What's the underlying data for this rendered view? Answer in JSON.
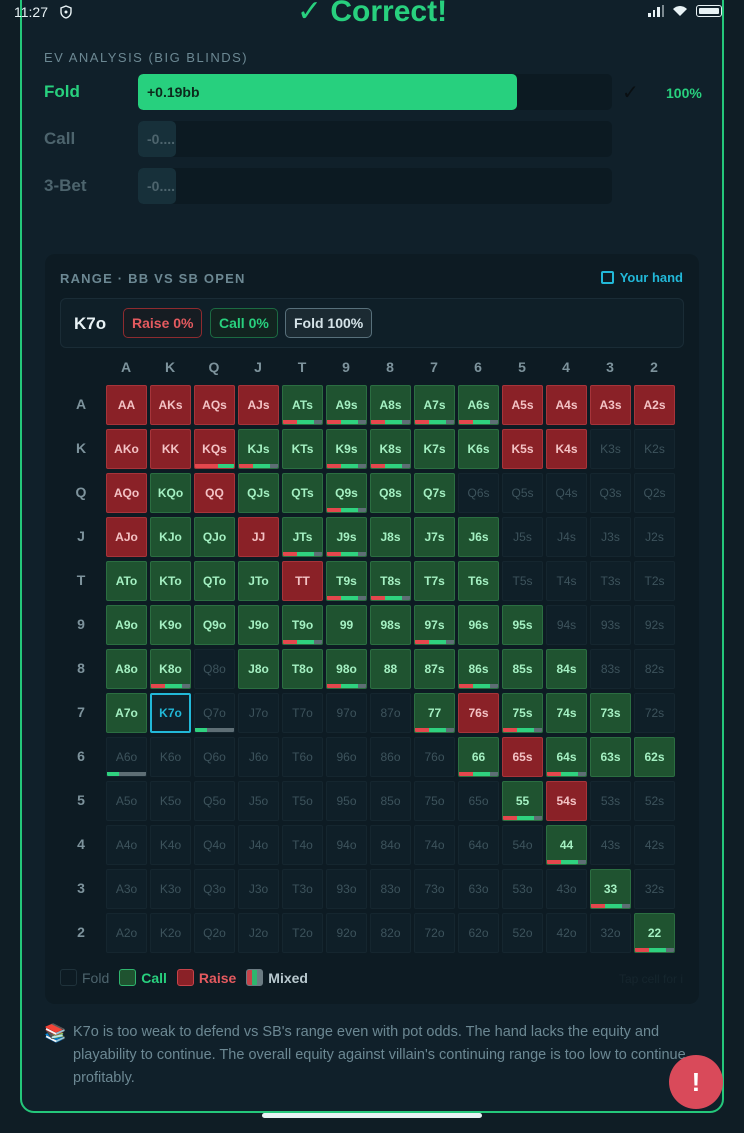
{
  "status": {
    "time": "11:27"
  },
  "header": {
    "result": "✓ Correct!"
  },
  "ev": {
    "title": "EV ANALYSIS (BIG BLINDS)",
    "rows": [
      {
        "label": "Fold",
        "value": "+0.19bb",
        "fill": 0.8,
        "selected": true,
        "check": "✓",
        "pct": "100%"
      },
      {
        "label": "Call",
        "value": "-0....",
        "fill": 0.08,
        "selected": false
      },
      {
        "label": "3-Bet",
        "value": "-0....",
        "fill": 0.08,
        "selected": false
      }
    ]
  },
  "range": {
    "title": "RANGE · BB VS SB OPEN",
    "your_hand_label": "Your hand",
    "hand": "K7o",
    "raise_pill": "Raise 0%",
    "call_pill": "Call 0%",
    "fold_pill": "Fold 100%",
    "ranks": [
      "A",
      "K",
      "Q",
      "J",
      "T",
      "9",
      "8",
      "7",
      "6",
      "5",
      "4",
      "3",
      "2"
    ],
    "grid": [
      [
        "R:AA",
        "R:AKs",
        "R:AQs",
        "R:AJs",
        "C:ATs:m",
        "C:A9s:m",
        "C:A8s:m",
        "C:A7s:m",
        "C:A6s:m",
        "R:A5s",
        "R:A4s",
        "R:A3s",
        "R:A2s"
      ],
      [
        "R:AKo",
        "R:KK",
        "R:KQs:m",
        "C:KJs:m",
        "C:KTs",
        "C:K9s:m",
        "C:K8s:m",
        "C:K7s",
        "C:K6s",
        "R:K5s",
        "R:K4s",
        "F:K3s",
        "F:K2s"
      ],
      [
        "R:AQo",
        "C:KQo",
        "R:QQ",
        "C:QJs",
        "C:QTs",
        "C:Q9s:m",
        "C:Q8s",
        "C:Q7s",
        "F:Q6s",
        "F:Q5s",
        "F:Q4s",
        "F:Q3s",
        "F:Q2s"
      ],
      [
        "R:AJo",
        "C:KJo",
        "C:QJo",
        "R:JJ",
        "C:JTs:m",
        "C:J9s:m",
        "C:J8s",
        "C:J7s",
        "C:J6s",
        "F:J5s",
        "F:J4s",
        "F:J3s",
        "F:J2s"
      ],
      [
        "C:ATo",
        "C:KTo",
        "C:QTo",
        "C:JTo",
        "R:TT",
        "C:T9s:m",
        "C:T8s:m",
        "C:T7s",
        "C:T6s",
        "F:T5s",
        "F:T4s",
        "F:T3s",
        "F:T2s"
      ],
      [
        "C:A9o",
        "C:K9o",
        "C:Q9o",
        "C:J9o",
        "C:T9o:m",
        "C:99",
        "C:98s",
        "C:97s:m",
        "C:96s",
        "C:95s",
        "F:94s",
        "F:93s",
        "F:92s"
      ],
      [
        "C:A8o",
        "C:K8o:m",
        "F:Q8o",
        "C:J8o",
        "C:T8o",
        "C:98o:m",
        "C:88",
        "C:87s",
        "C:86s:m",
        "C:85s",
        "C:84s",
        "F:83s",
        "F:82s"
      ],
      [
        "C:A7o",
        "H:K7o",
        "F:Q7o:m",
        "F:J7o",
        "F:T7o",
        "F:97o",
        "F:87o",
        "C:77:m",
        "R:76s",
        "C:75s:m",
        "C:74s",
        "C:73s",
        "F:72s"
      ],
      [
        "F:A6o:m",
        "F:K6o",
        "F:Q6o",
        "F:J6o",
        "F:T6o",
        "F:96o",
        "F:86o",
        "F:76o",
        "C:66:m",
        "R:65s",
        "C:64s:m",
        "C:63s",
        "C:62s"
      ],
      [
        "F:A5o",
        "F:K5o",
        "F:Q5o",
        "F:J5o",
        "F:T5o",
        "F:95o",
        "F:85o",
        "F:75o",
        "F:65o",
        "C:55:m",
        "R:54s",
        "F:53s",
        "F:52s"
      ],
      [
        "F:A4o",
        "F:K4o",
        "F:Q4o",
        "F:J4o",
        "F:T4o",
        "F:94o",
        "F:84o",
        "F:74o",
        "F:64o",
        "F:54o",
        "C:44:m",
        "F:43s",
        "F:42s"
      ],
      [
        "F:A3o",
        "F:K3o",
        "F:Q3o",
        "F:J3o",
        "F:T3o",
        "F:93o",
        "F:83o",
        "F:73o",
        "F:63o",
        "F:53o",
        "F:43o",
        "C:33:m",
        "F:32s"
      ],
      [
        "F:A2o",
        "F:K2o",
        "F:Q2o",
        "F:J2o",
        "F:T2o",
        "F:92o",
        "F:82o",
        "F:72o",
        "F:62o",
        "F:52o",
        "F:42o",
        "F:32o",
        "C:22:m"
      ]
    ],
    "legend": {
      "fold": "Fold",
      "call": "Call",
      "raise": "Raise",
      "mixed": "Mixed"
    },
    "tap_hint": "Tap cell for i"
  },
  "explanation": "K7o is too weak to defend vs SB's range even with pot odds. The hand lacks the equity and playability to continue. The overall equity against villain's continuing range is too low to continue profitably.",
  "fab_label": "!"
}
